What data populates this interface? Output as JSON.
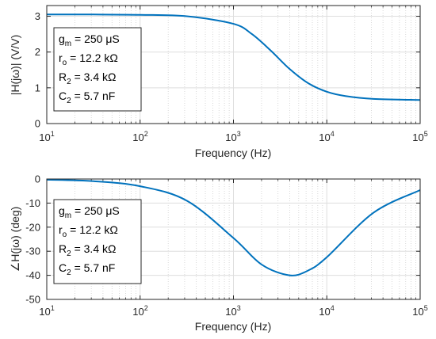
{
  "chart_data": [
    {
      "type": "line",
      "xlabel": "Frequency (Hz)",
      "ylabel": "|H(jω)| (V/V)",
      "xscale": "log",
      "xlim": [
        10,
        100000
      ],
      "ylim": [
        0,
        3.3
      ],
      "x_ticks": [
        {
          "base": "10",
          "exp": "1"
        },
        {
          "base": "10",
          "exp": "2"
        },
        {
          "base": "10",
          "exp": "3"
        },
        {
          "base": "10",
          "exp": "4"
        },
        {
          "base": "10",
          "exp": "5"
        }
      ],
      "y_ticks": [
        "0",
        "1",
        "2",
        "3"
      ],
      "grid": true,
      "line_color": "#0072BD",
      "x": [
        10,
        31.6,
        100,
        316,
        1000,
        1580,
        2510,
        3980,
        6310,
        10000,
        15800,
        31600,
        100000
      ],
      "y": [
        3.05,
        3.05,
        3.04,
        3.0,
        2.79,
        2.5,
        2.04,
        1.53,
        1.13,
        0.89,
        0.77,
        0.69,
        0.66
      ],
      "legend_position": "top-left",
      "annotation": [
        {
          "main": "g",
          "sub": "m",
          "rest": " = 250 μS"
        },
        {
          "main": "r",
          "sub": "o",
          "rest": " = 12.2 kΩ"
        },
        {
          "main": "R",
          "sub": "2",
          "rest": " = 3.4 kΩ"
        },
        {
          "main": "C",
          "sub": "2",
          "rest": " = 5.7 nF"
        }
      ]
    },
    {
      "type": "line",
      "xlabel": "Frequency (Hz)",
      "ylabel": "∠H(jω) (deg)",
      "xscale": "log",
      "xlim": [
        10,
        100000
      ],
      "ylim": [
        -50,
        0
      ],
      "x_ticks": [
        {
          "base": "10",
          "exp": "1"
        },
        {
          "base": "10",
          "exp": "2"
        },
        {
          "base": "10",
          "exp": "3"
        },
        {
          "base": "10",
          "exp": "4"
        },
        {
          "base": "10",
          "exp": "5"
        }
      ],
      "y_ticks": [
        "0",
        "-10",
        "-20",
        "-30",
        "-40",
        "-50"
      ],
      "grid": true,
      "line_color": "#0072BD",
      "x": [
        10,
        31.6,
        100,
        316,
        1000,
        2000,
        3980,
        6310,
        10000,
        31600,
        100000
      ],
      "y": [
        -0.3,
        -0.9,
        -3.0,
        -9.0,
        -24.5,
        -35.5,
        -40.0,
        -38.0,
        -32.5,
        -14.0,
        -4.6
      ],
      "legend_position": "left",
      "annotation": [
        {
          "main": "g",
          "sub": "m",
          "rest": " = 250 μS"
        },
        {
          "main": "r",
          "sub": "o",
          "rest": " = 12.2 kΩ"
        },
        {
          "main": "R",
          "sub": "2",
          "rest": " = 3.4 kΩ"
        },
        {
          "main": "C",
          "sub": "2",
          "rest": " = 5.7 nF"
        }
      ]
    }
  ]
}
